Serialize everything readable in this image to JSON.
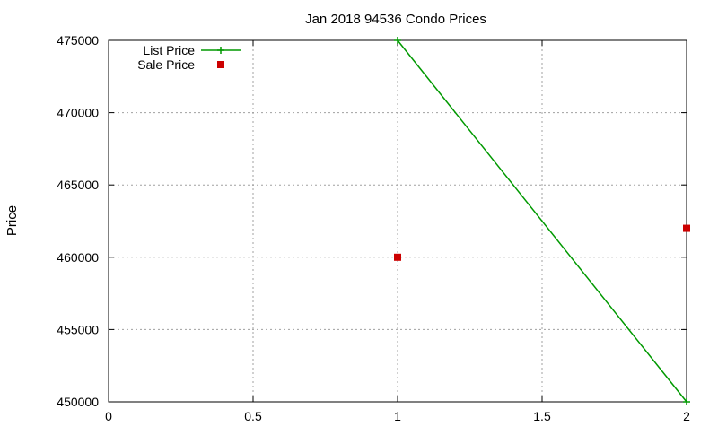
{
  "chart_data": {
    "type": "line",
    "title": "Jan 2018 94536 Condo Prices",
    "xlabel": "",
    "ylabel": "Price",
    "xlim": [
      0,
      2
    ],
    "ylim": [
      450000,
      475000
    ],
    "x_ticks": [
      0,
      0.5,
      1,
      1.5,
      2
    ],
    "x_tick_labels": [
      "0",
      "0.5",
      "1",
      "1.5",
      "2"
    ],
    "y_ticks": [
      450000,
      455000,
      460000,
      465000,
      470000,
      475000
    ],
    "y_tick_labels": [
      "450000",
      "455000",
      "460000",
      "465000",
      "470000",
      "475000"
    ],
    "grid": true,
    "legend_position": "top-left",
    "series": [
      {
        "name": "List Price",
        "style": "line-with-plus-markers",
        "color": "#009900",
        "x": [
          1,
          2
        ],
        "y": [
          475000,
          450000
        ]
      },
      {
        "name": "Sale Price",
        "style": "square-markers",
        "color": "#cc0000",
        "x": [
          1,
          2
        ],
        "y": [
          460000,
          462000
        ]
      }
    ]
  }
}
